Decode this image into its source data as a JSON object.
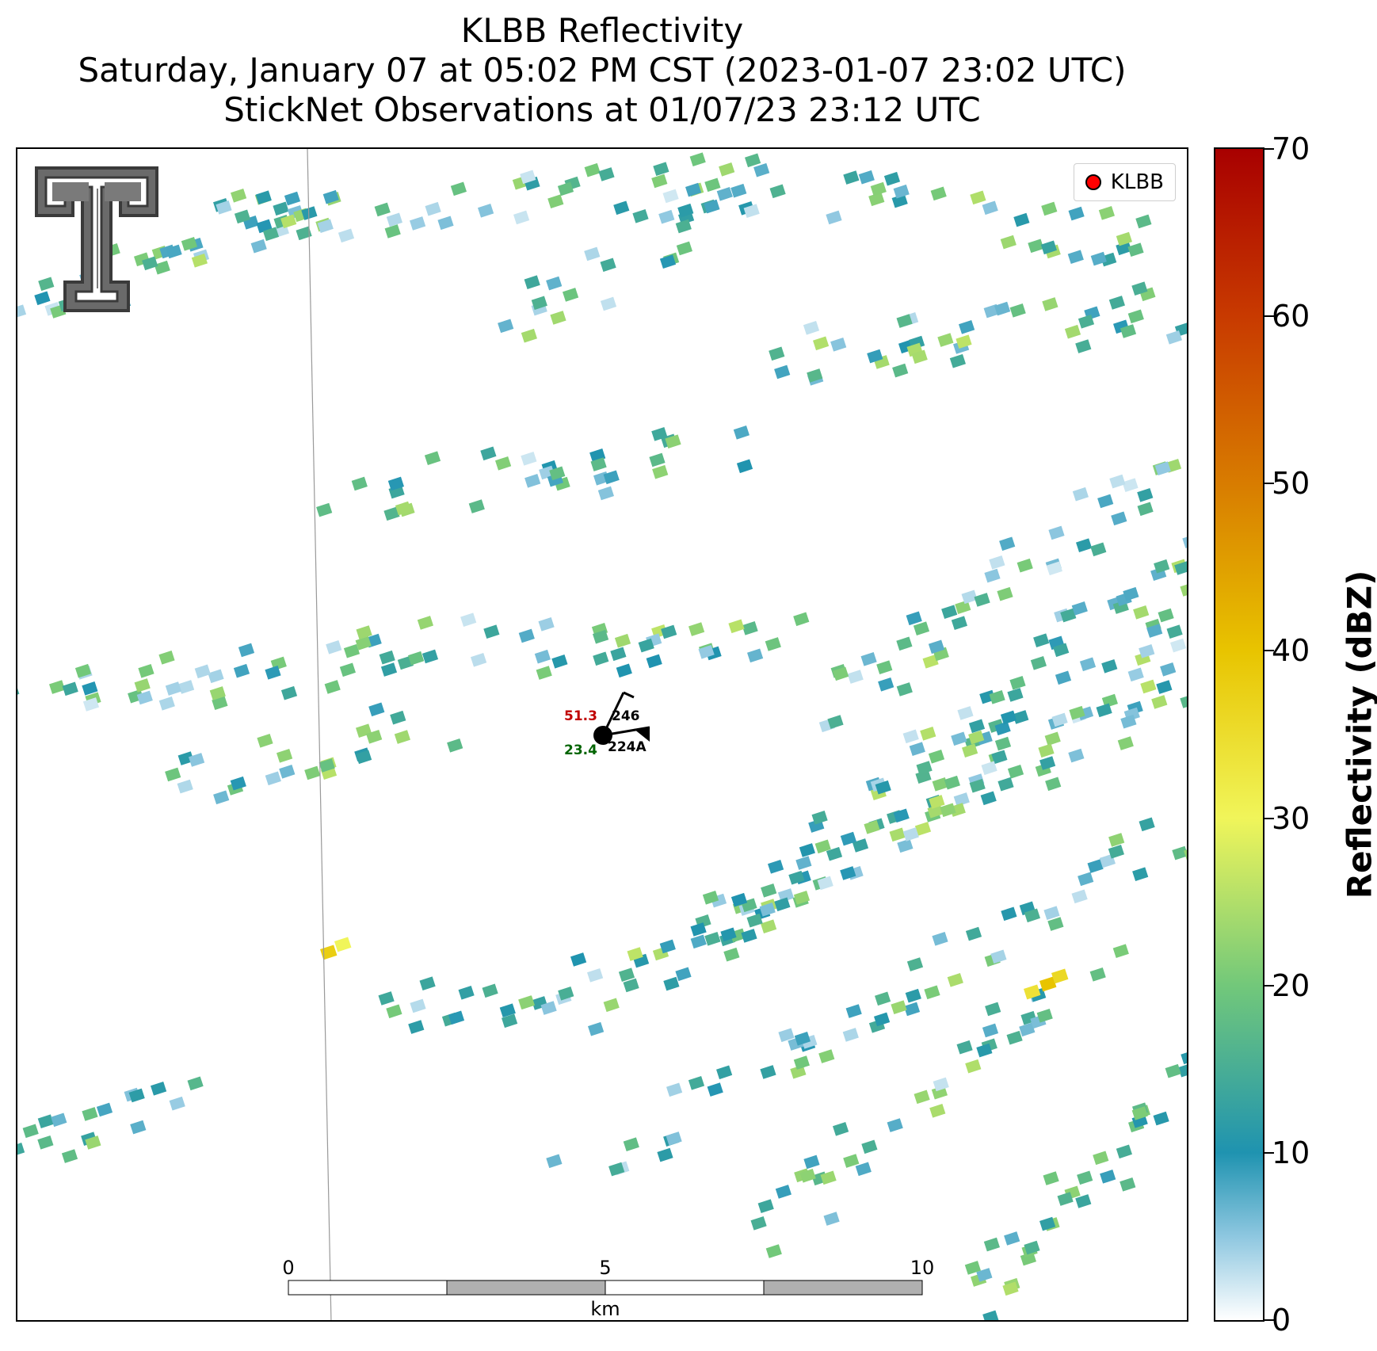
{
  "title": {
    "line1": "KLBB Reflectivity",
    "line2": "Saturday, January 07 at 05:02 PM CST (2023-01-07 23:02 UTC)",
    "line3": "StickNet Observations at 01/07/23 23:12 UTC"
  },
  "legend": {
    "label": "KLBB",
    "marker_color": "#ff0000"
  },
  "station": {
    "temperature": "51.3",
    "dewpoint": "23.4",
    "pressure_code": "246",
    "station_id": "224A",
    "temperature_color": "#c00000",
    "dewpoint_color": "#006400"
  },
  "scalebar": {
    "ticks": [
      "0",
      "5",
      "10"
    ],
    "unit": "km"
  },
  "colorbar": {
    "label": "Reflectivity (dBZ)",
    "min": 0,
    "max": 70,
    "ticks": [
      "0",
      "10",
      "20",
      "30",
      "40",
      "50",
      "60",
      "70"
    ],
    "colormap": [
      {
        "value": 0,
        "color": "#ffffff"
      },
      {
        "value": 5,
        "color": "#8ec7e0"
      },
      {
        "value": 10,
        "color": "#1f93b0"
      },
      {
        "value": 20,
        "color": "#72c87a"
      },
      {
        "value": 30,
        "color": "#f0f55a"
      },
      {
        "value": 40,
        "color": "#e8c400"
      },
      {
        "value": 50,
        "color": "#d87c00"
      },
      {
        "value": 60,
        "color": "#c83a00"
      },
      {
        "value": 70,
        "color": "#a80000"
      }
    ]
  },
  "logo": {
    "name": "texas-tech-double-t-logo",
    "mark": "T"
  }
}
